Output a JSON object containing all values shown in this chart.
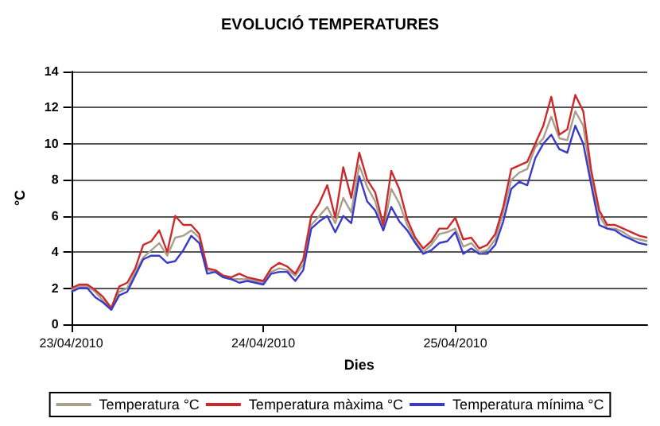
{
  "chart_data": {
    "type": "line",
    "title": "EVOLUCIÓ TEMPERATURES",
    "xlabel": "Dies",
    "ylabel": "°C",
    "x": [
      "2010-04-23T00:00",
      "2010-04-23T01:00",
      "2010-04-23T02:00",
      "2010-04-23T03:00",
      "2010-04-23T04:00",
      "2010-04-23T05:00",
      "2010-04-23T06:00",
      "2010-04-23T07:00",
      "2010-04-23T08:00",
      "2010-04-23T09:00",
      "2010-04-23T10:00",
      "2010-04-23T11:00",
      "2010-04-23T12:00",
      "2010-04-23T13:00",
      "2010-04-23T14:00",
      "2010-04-23T15:00",
      "2010-04-23T16:00",
      "2010-04-23T17:00",
      "2010-04-23T18:00",
      "2010-04-23T19:00",
      "2010-04-23T20:00",
      "2010-04-23T21:00",
      "2010-04-23T22:00",
      "2010-04-23T23:00",
      "2010-04-24T00:00",
      "2010-04-24T01:00",
      "2010-04-24T02:00",
      "2010-04-24T03:00",
      "2010-04-24T04:00",
      "2010-04-24T05:00",
      "2010-04-24T06:00",
      "2010-04-24T07:00",
      "2010-04-24T08:00",
      "2010-04-24T09:00",
      "2010-04-24T10:00",
      "2010-04-24T11:00",
      "2010-04-24T12:00",
      "2010-04-24T13:00",
      "2010-04-24T14:00",
      "2010-04-24T15:00",
      "2010-04-24T16:00",
      "2010-04-24T17:00",
      "2010-04-24T18:00",
      "2010-04-24T19:00",
      "2010-04-24T20:00",
      "2010-04-24T21:00",
      "2010-04-24T22:00",
      "2010-04-24T23:00",
      "2010-04-25T00:00",
      "2010-04-25T01:00",
      "2010-04-25T02:00",
      "2010-04-25T03:00",
      "2010-04-25T04:00",
      "2010-04-25T05:00",
      "2010-04-25T06:00",
      "2010-04-25T07:00",
      "2010-04-25T08:00",
      "2010-04-25T09:00",
      "2010-04-25T10:00",
      "2010-04-25T11:00",
      "2010-04-25T12:00",
      "2010-04-25T13:00",
      "2010-04-25T14:00",
      "2010-04-25T15:00",
      "2010-04-25T16:00",
      "2010-04-25T17:00",
      "2010-04-25T18:00",
      "2010-04-25T19:00",
      "2010-04-25T20:00",
      "2010-04-25T21:00",
      "2010-04-25T22:00",
      "2010-04-25T23:00",
      "2010-04-26T00:00"
    ],
    "series": [
      {
        "name": "Temperatura °C",
        "color": "#a89f8c",
        "values": [
          1.9,
          2.1,
          2.1,
          1.8,
          1.3,
          0.9,
          1.8,
          2.0,
          2.9,
          3.7,
          4.1,
          4.5,
          3.8,
          4.8,
          4.9,
          5.2,
          4.8,
          3.0,
          2.9,
          2.6,
          2.5,
          2.5,
          2.5,
          2.4,
          2.3,
          2.9,
          3.1,
          3.0,
          2.7,
          3.3,
          5.5,
          6.0,
          6.5,
          5.6,
          7.0,
          6.2,
          8.8,
          7.6,
          6.8,
          5.2,
          7.5,
          6.7,
          5.5,
          4.6,
          4.0,
          4.4,
          5.0,
          5.1,
          5.3,
          4.3,
          4.5,
          4.0,
          4.1,
          4.7,
          6.2,
          8.0,
          8.4,
          8.6,
          9.8,
          10.3,
          11.5,
          10.3,
          10.2,
          11.8,
          11.0,
          8.0,
          6.0,
          5.3,
          5.3,
          5.1,
          4.8,
          4.7,
          4.6
        ]
      },
      {
        "name": "Temperatura màxima °C",
        "color": "#cc2a2a",
        "values": [
          2.0,
          2.2,
          2.2,
          1.9,
          1.5,
          0.9,
          2.1,
          2.3,
          3.1,
          4.4,
          4.6,
          5.2,
          4.0,
          6.0,
          5.5,
          5.5,
          5.0,
          3.1,
          3.0,
          2.7,
          2.6,
          2.8,
          2.6,
          2.5,
          2.4,
          3.1,
          3.4,
          3.2,
          2.8,
          3.6,
          6.0,
          6.7,
          7.7,
          5.9,
          8.7,
          7.0,
          9.5,
          8.0,
          7.3,
          5.5,
          8.5,
          7.5,
          5.8,
          4.8,
          4.2,
          4.6,
          5.3,
          5.3,
          5.9,
          4.7,
          4.8,
          4.2,
          4.4,
          5.0,
          6.5,
          8.6,
          8.8,
          9.0,
          10.0,
          11.0,
          12.6,
          10.5,
          10.8,
          12.7,
          11.8,
          8.5,
          6.3,
          5.5,
          5.5,
          5.3,
          5.1,
          4.9,
          4.8
        ]
      },
      {
        "name": "Temperatura mínima °C",
        "color": "#3a3ac8",
        "values": [
          1.8,
          2.0,
          2.0,
          1.5,
          1.2,
          0.8,
          1.6,
          1.8,
          2.7,
          3.6,
          3.8,
          3.8,
          3.4,
          3.5,
          4.1,
          4.9,
          4.5,
          2.8,
          2.9,
          2.6,
          2.5,
          2.3,
          2.4,
          2.3,
          2.2,
          2.8,
          2.9,
          2.9,
          2.4,
          3.0,
          5.3,
          5.7,
          6.0,
          5.1,
          6.0,
          5.6,
          8.2,
          6.8,
          6.3,
          5.2,
          6.5,
          5.7,
          5.2,
          4.5,
          3.9,
          4.1,
          4.5,
          4.6,
          5.1,
          3.9,
          4.2,
          3.9,
          3.9,
          4.4,
          5.7,
          7.5,
          7.9,
          7.7,
          9.2,
          10.0,
          10.5,
          9.7,
          9.5,
          11.0,
          10.0,
          7.7,
          5.5,
          5.3,
          5.2,
          4.9,
          4.7,
          4.5,
          4.4
        ]
      }
    ],
    "xlim": [
      "2010-04-23T00:00",
      "2010-04-26T00:00"
    ],
    "xticks": [
      {
        "value": "2010-04-23",
        "label": "23/04/2010"
      },
      {
        "value": "2010-04-24",
        "label": "24/04/2010"
      },
      {
        "value": "2010-04-25",
        "label": "25/04/2010"
      }
    ],
    "ylim": [
      0,
      14
    ],
    "yticks": [
      0,
      2,
      4,
      6,
      8,
      10,
      12,
      14
    ],
    "grid": "y",
    "legend": "bottom",
    "marker": "none",
    "line_style": "solid"
  }
}
